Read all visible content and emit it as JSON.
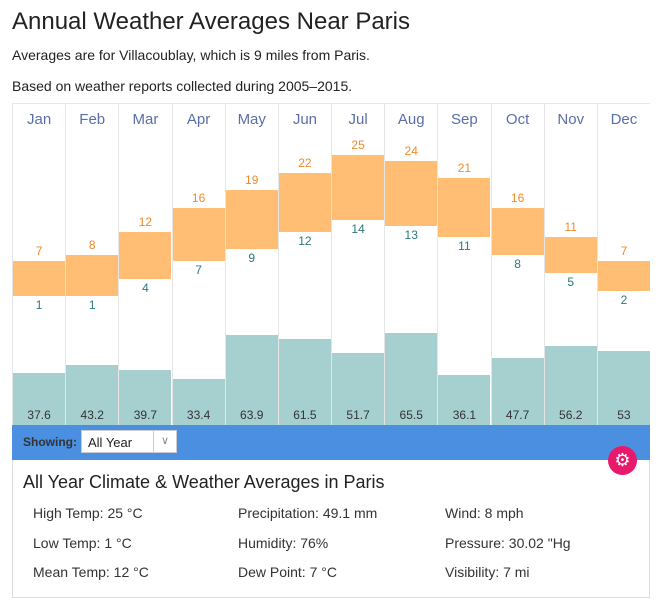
{
  "title": "Annual Weather Averages Near Paris",
  "subtitle1": "Averages are for Villacoublay, which is 9 miles from Paris.",
  "subtitle2": "Based on weather reports collected during 2005–2015.",
  "chart_data": {
    "type": "bar",
    "categories": [
      "Jan",
      "Feb",
      "Mar",
      "Apr",
      "May",
      "Jun",
      "Jul",
      "Aug",
      "Sep",
      "Oct",
      "Nov",
      "Dec"
    ],
    "series": [
      {
        "name": "High Temp (°C)",
        "values": [
          7,
          8,
          12,
          16,
          19,
          22,
          25,
          24,
          21,
          16,
          11,
          7
        ]
      },
      {
        "name": "Low Temp (°C)",
        "values": [
          1,
          1,
          4,
          7,
          9,
          12,
          14,
          13,
          11,
          8,
          5,
          2
        ]
      },
      {
        "name": "Precipitation (mm)",
        "values": [
          37.6,
          43.2,
          39.7,
          33.4,
          63.9,
          61.5,
          51.7,
          65.5,
          36.1,
          47.7,
          56.2,
          53
        ]
      }
    ],
    "colors": {
      "temp": "#ffbe73",
      "precip": "#a6cfd0",
      "high_label": "#ef8a2a",
      "low_label": "#2a7a80"
    }
  },
  "controls": {
    "showing_label": "Showing:",
    "selected": "All Year",
    "gear_icon": "gear-icon"
  },
  "summary": {
    "title": "All Year Climate & Weather Averages in Paris",
    "stats": [
      "High Temp: 25 °C",
      "Precipitation: 49.1 mm",
      "Wind: 8 mph",
      "Low Temp: 1 °C",
      "Humidity: 76%",
      "Pressure: 30.02 \"Hg",
      "Mean Temp: 12 °C",
      "Dew Point: 7 °C",
      "Visibility: 7 mi"
    ]
  }
}
